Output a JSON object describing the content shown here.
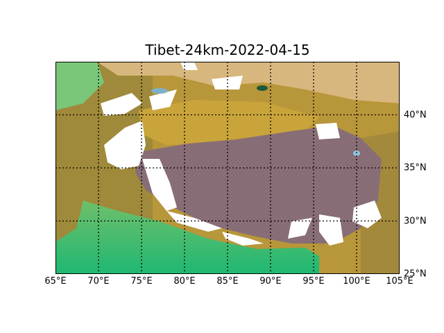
{
  "title": "Tibet-24km-2022-04-15",
  "map": {
    "projection": "equirectangular",
    "lon_range": [
      65,
      105
    ],
    "lat_range": [
      25,
      45
    ],
    "gridlines": true,
    "lon_ticks": [
      {
        "value": 65,
        "label": "65°E"
      },
      {
        "value": 70,
        "label": "70°E"
      },
      {
        "value": 75,
        "label": "75°E"
      },
      {
        "value": 80,
        "label": "80°E"
      },
      {
        "value": 85,
        "label": "85°E"
      },
      {
        "value": 90,
        "label": "90°E"
      },
      {
        "value": 95,
        "label": "95°E"
      },
      {
        "value": 100,
        "label": "100°E"
      },
      {
        "value": 105,
        "label": "105°E"
      }
    ],
    "lat_ticks": [
      {
        "value": 25,
        "label": "25°N"
      },
      {
        "value": 30,
        "label": "30°N"
      },
      {
        "value": 35,
        "label": "35°N"
      },
      {
        "value": 40,
        "label": "40°N"
      }
    ],
    "colors": {
      "plateau": "#8a6f78",
      "desert": "#c9a43a",
      "lowland": "#66c07a",
      "snow": "#ffffff",
      "grid": "#000000"
    }
  }
}
